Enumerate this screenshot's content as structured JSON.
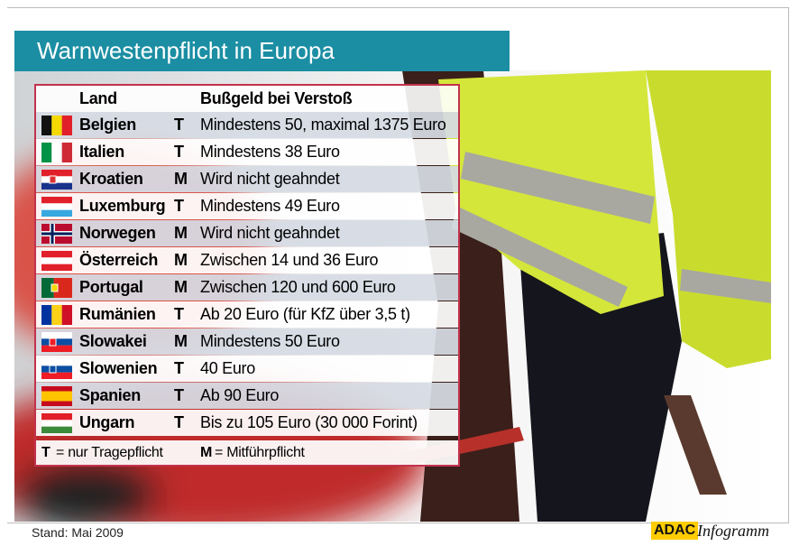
{
  "header": {
    "title": "Warnwestenpflicht in Europa"
  },
  "table": {
    "columns": [
      "Land",
      "Bußgeld bei Verstoß"
    ],
    "rows": [
      [
        "Belgien",
        "T",
        "Mindestens 50, maximal 1375 Euro"
      ],
      [
        "Italien",
        "T",
        "Mindestens 38 Euro"
      ],
      [
        "Kroatien",
        "M",
        "Wird nicht geahndet"
      ],
      [
        "Luxemburg",
        "T",
        "Mindestens 49 Euro"
      ],
      [
        "Norwegen",
        "M",
        "Wird nicht geahndet"
      ],
      [
        "Österreich",
        "M",
        "Zwischen 14 und 36 Euro"
      ],
      [
        "Portugal",
        "M",
        "Zwischen 120 und 600 Euro"
      ],
      [
        "Rumänien",
        "T",
        "Ab 20 Euro (für KfZ über 3,5 t)"
      ],
      [
        "Slowakei",
        "M",
        "Mindestens 50 Euro"
      ],
      [
        "Slowenien",
        "T",
        "40 Euro"
      ],
      [
        "Spanien",
        "T",
        "Ab 90 Euro"
      ],
      [
        "Ungarn",
        "T",
        "Bis zu 105 Euro (30 000 Forint)"
      ]
    ]
  },
  "legend": [
    {
      "key": "T",
      "text": "= nur Tragepflicht"
    },
    {
      "key": "M",
      "text": "= Mitführpflicht"
    }
  ],
  "footer": {
    "source": "Stand: Mai 2009",
    "brand": "ADAC",
    "product": "Infogramm"
  }
}
